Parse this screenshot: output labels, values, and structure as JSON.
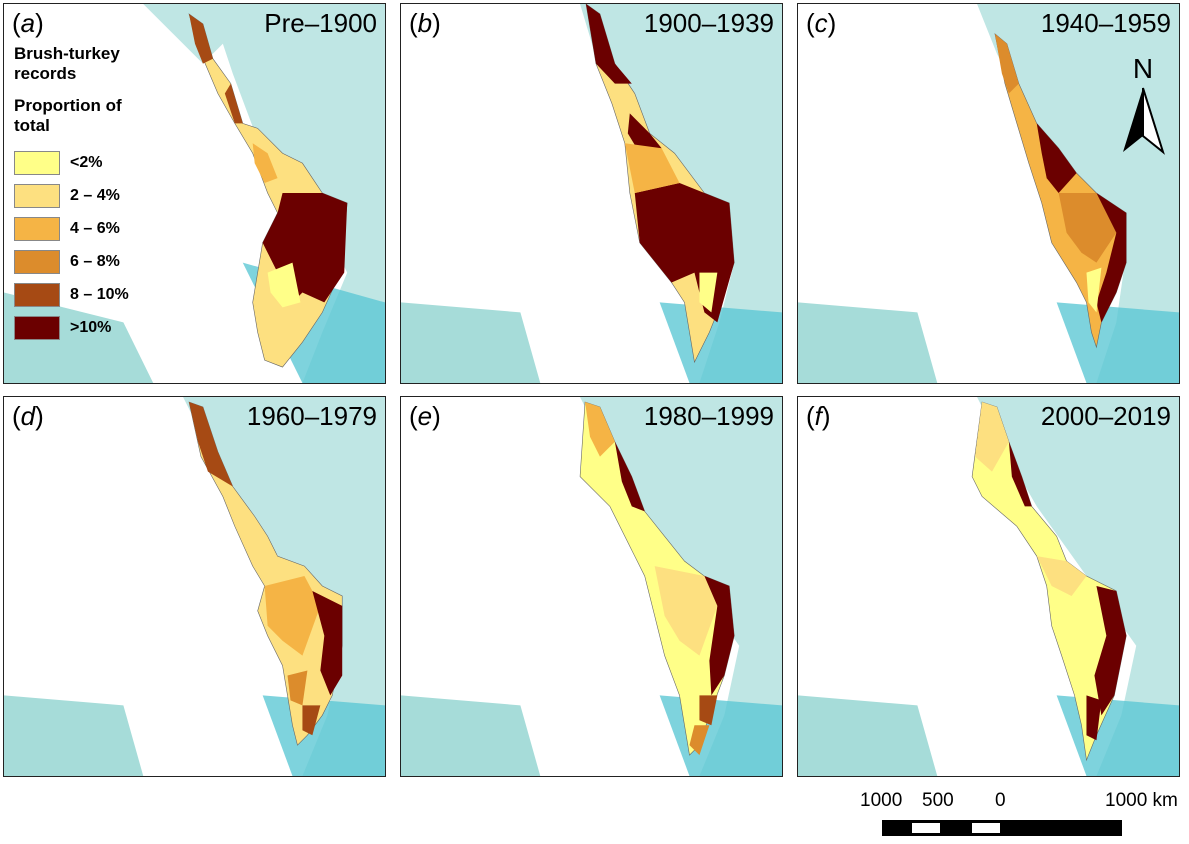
{
  "panels": [
    {
      "letter": "a",
      "period": "Pre–1900"
    },
    {
      "letter": "b",
      "period": "1900–1939"
    },
    {
      "letter": "c",
      "period": "1940–1959"
    },
    {
      "letter": "d",
      "period": "1960–1979"
    },
    {
      "letter": "e",
      "period": "1980–1999"
    },
    {
      "letter": "f",
      "period": "2000–2019"
    }
  ],
  "legend": {
    "title": "Brush-turkey records",
    "title_line1": "Brush-turkey",
    "title_line2": "records",
    "subtitle_line1": "Proportion of",
    "subtitle_line2": "total",
    "classes": [
      {
        "label": "<2%",
        "color": "#ffff88"
      },
      {
        "label": "2 – 4%",
        "color": "#fde080"
      },
      {
        "label": "4 – 6%",
        "color": "#f5b445"
      },
      {
        "label": "6 – 8%",
        "color": "#dc8c2c"
      },
      {
        "label": "8 – 10%",
        "color": "#a64a14"
      },
      {
        "label": ">10%",
        "color": "#6b0000"
      }
    ]
  },
  "north_arrow": {
    "label": "N"
  },
  "scale_bar": {
    "labels": [
      "1000",
      "500",
      "0",
      "1000 km"
    ]
  },
  "colors": {
    "ocean": "#bfe6e4",
    "ocean_deep": "#5ec8d4",
    "land": "#ffffff",
    "border": "#222222"
  }
}
